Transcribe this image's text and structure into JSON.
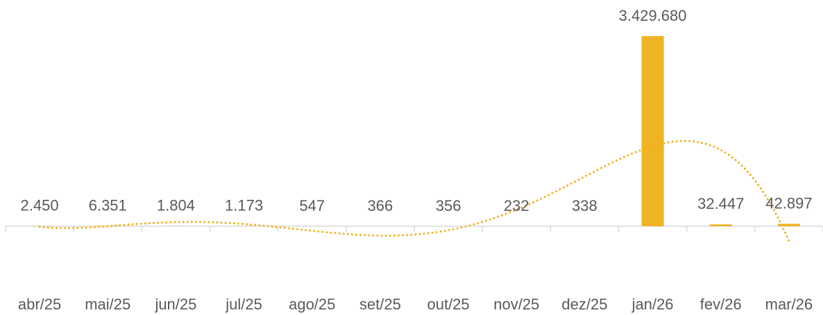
{
  "chart_data": {
    "type": "bar",
    "categories": [
      "abr/25",
      "mai/25",
      "jun/25",
      "jul/25",
      "ago/25",
      "set/25",
      "out/25",
      "nov/25",
      "dez/25",
      "jan/26",
      "fev/26",
      "mar/26"
    ],
    "values": [
      2450,
      6351,
      1804,
      1173,
      547,
      366,
      356,
      232,
      338,
      3429680,
      32447,
      42897
    ],
    "value_labels": [
      "2.450",
      "6.351",
      "1.804",
      "1.173",
      "547",
      "366",
      "356",
      "232",
      "338",
      "3.429.680",
      "32.447",
      "42.897"
    ],
    "color": "#f0b323",
    "trendline": true
  }
}
